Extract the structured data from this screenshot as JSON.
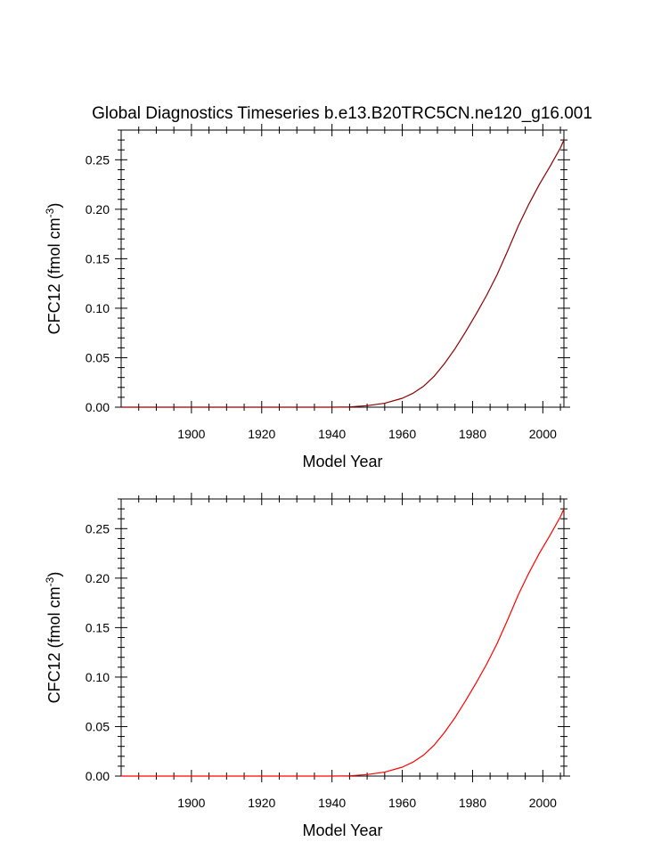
{
  "title": "Global Diagnostics Timeseries b.e13.B20TRC5CN.ne120_g16.001",
  "chart_data": [
    {
      "type": "line",
      "xlabel": "Model Year",
      "ylabel_main": "CFC12 (fmol cm",
      "ylabel_sup": "-3",
      "ylabel_close": ")",
      "xlim": [
        1880,
        2006
      ],
      "ylim": [
        0.0,
        0.28
      ],
      "xticks": [
        1900,
        1920,
        1940,
        1960,
        1980,
        2000
      ],
      "yticks": [
        0.0,
        0.05,
        0.1,
        0.15,
        0.2,
        0.25
      ],
      "ytick_labels": [
        "0.00",
        "0.05",
        "0.10",
        "0.15",
        "0.20",
        "0.25"
      ],
      "grid": false,
      "series": [
        {
          "color": "#8b0000",
          "x": [
            1880,
            1920,
            1940,
            1945,
            1950,
            1955,
            1960,
            1963,
            1966,
            1969,
            1972,
            1975,
            1978,
            1981,
            1984,
            1987,
            1990,
            1993,
            1996,
            1999,
            2002,
            2005,
            2006
          ],
          "y": [
            0.0,
            0.0,
            0.0,
            0.0003,
            0.0015,
            0.004,
            0.009,
            0.014,
            0.021,
            0.031,
            0.044,
            0.059,
            0.076,
            0.094,
            0.113,
            0.134,
            0.158,
            0.183,
            0.205,
            0.225,
            0.243,
            0.262,
            0.27
          ]
        }
      ]
    },
    {
      "type": "line",
      "xlabel": "Model Year",
      "ylabel_main": "CFC12 (fmol cm",
      "ylabel_sup": "-3",
      "ylabel_close": ")",
      "xlim": [
        1880,
        2006
      ],
      "ylim": [
        0.0,
        0.28
      ],
      "xticks": [
        1900,
        1920,
        1940,
        1960,
        1980,
        2000
      ],
      "yticks": [
        0.0,
        0.05,
        0.1,
        0.15,
        0.2,
        0.25
      ],
      "ytick_labels": [
        "0.00",
        "0.05",
        "0.10",
        "0.15",
        "0.20",
        "0.25"
      ],
      "grid": false,
      "series": [
        {
          "color": "#ff0000",
          "x": [
            1880,
            1920,
            1940,
            1945,
            1950,
            1955,
            1960,
            1963,
            1966,
            1969,
            1972,
            1975,
            1978,
            1981,
            1984,
            1987,
            1990,
            1993,
            1996,
            1999,
            2002,
            2005,
            2006
          ],
          "y": [
            0.0,
            0.0,
            0.0,
            0.0003,
            0.0015,
            0.004,
            0.009,
            0.014,
            0.021,
            0.031,
            0.044,
            0.059,
            0.076,
            0.094,
            0.113,
            0.134,
            0.158,
            0.183,
            0.205,
            0.225,
            0.243,
            0.262,
            0.27
          ]
        }
      ]
    }
  ]
}
